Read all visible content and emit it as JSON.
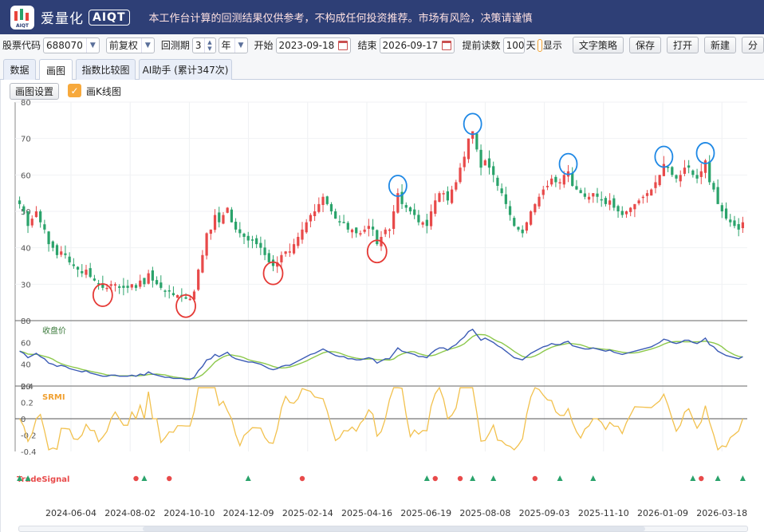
{
  "header": {
    "logo_text": "AIQT",
    "brand": "爱量化",
    "brand_tag": "AIQT",
    "notice": "本工作台计算的回测结果仅供参考，不构成任何投资推荐。市场有风险，决策请谨慎"
  },
  "toolbar": {
    "code_label": "股票代码",
    "code_value": "688070",
    "adjust_value": "前复权",
    "period_label": "回测期",
    "period_value": "3",
    "period_unit": "年",
    "start_label": "开始",
    "start_value": "2023-09-18",
    "end_label": "结束",
    "end_value": "2026-09-17",
    "preread_label": "提前读数",
    "preread_value": "100",
    "preread_unit": "天",
    "show_label": "显示",
    "btn_strategy": "文字策略",
    "btn_save": "保存",
    "btn_open": "打开",
    "btn_new": "新建",
    "btn_more": "分"
  },
  "tabs": [
    {
      "label": "数据",
      "active": false
    },
    {
      "label": "画图",
      "active": true
    },
    {
      "label": "指数比较图",
      "active": false
    },
    {
      "label": "AI助手 (累计347次)",
      "active": false
    }
  ],
  "chart_controls": {
    "settings_button": "画图设置",
    "kline_label": "画K线图",
    "kline_checked": true
  },
  "chart_data": {
    "type": "line",
    "x_ticks": [
      "2024-06-04",
      "2024-08-02",
      "2024-10-10",
      "2024-12-09",
      "2025-02-14",
      "2025-04-16",
      "2025-06-19",
      "2025-08-08",
      "2025-09-03",
      "2025-11-10",
      "2026-01-09",
      "2026-03-18"
    ],
    "panels": [
      {
        "name": "price",
        "type": "candlestick",
        "y_ticks": [
          30,
          40,
          50,
          60,
          70,
          80
        ],
        "ylim": [
          20,
          80
        ],
        "up_color": "#e84a4a",
        "down_color": "#2aa36b",
        "close": [
          52,
          50,
          46,
          48,
          50,
          47,
          45,
          41,
          40,
          38,
          39,
          38,
          36,
          35,
          34,
          33,
          34,
          32,
          31,
          30,
          29,
          29,
          30,
          30,
          29,
          29,
          29,
          30,
          29,
          31,
          30,
          33,
          31,
          30,
          29,
          28,
          28,
          27,
          27,
          27,
          26,
          26,
          28,
          34,
          38,
          44,
          45,
          49,
          47,
          49,
          51,
          47,
          45,
          44,
          43,
          42,
          42,
          41,
          40,
          38,
          36,
          35,
          36,
          38,
          39,
          39,
          41,
          43,
          45,
          47,
          49,
          50,
          52,
          54,
          52,
          50,
          48,
          47,
          47,
          45,
          45,
          44,
          44,
          45,
          46,
          45,
          41,
          43,
          45,
          45,
          50,
          55,
          52,
          51,
          50,
          49,
          47,
          47,
          46,
          50,
          53,
          55,
          55,
          53,
          56,
          58,
          62,
          65,
          70,
          72,
          67,
          62,
          64,
          62,
          60,
          57,
          55,
          52,
          49,
          46,
          45,
          44,
          47,
          50,
          52,
          54,
          56,
          57,
          59,
          58,
          58,
          60,
          61,
          57,
          56,
          55,
          54,
          54,
          55,
          54,
          53,
          52,
          53,
          51,
          50,
          49,
          50,
          51,
          52,
          53,
          54,
          55,
          56,
          58,
          60,
          63,
          62,
          60,
          59,
          60,
          62,
          62,
          60,
          59,
          61,
          64,
          58,
          56,
          52,
          50,
          48,
          47,
          46,
          45,
          47
        ],
        "annotations": [
          {
            "kind": "peak",
            "color": "#1e88e5"
          },
          {
            "kind": "peak",
            "color": "#1e88e5"
          },
          {
            "kind": "peak",
            "color": "#1e88e5"
          },
          {
            "kind": "peak",
            "color": "#1e88e5"
          },
          {
            "kind": "peak",
            "color": "#1e88e5"
          },
          {
            "kind": "trough",
            "color": "#e53935"
          },
          {
            "kind": "trough",
            "color": "#e53935"
          },
          {
            "kind": "trough",
            "color": "#e53935"
          },
          {
            "kind": "trough",
            "color": "#e53935"
          }
        ]
      },
      {
        "name": "close",
        "label": "收盘价",
        "y_ticks": [
          20,
          40,
          60,
          80
        ],
        "ylim": [
          20,
          80
        ],
        "series": [
          {
            "name": "close",
            "color": "#3b5bb5"
          },
          {
            "name": "ma",
            "color": "#8cc84b"
          }
        ]
      },
      {
        "name": "SRMI",
        "label": "SRMI",
        "y_ticks": [
          -0.4,
          -0.2,
          0,
          0.2,
          0.4
        ],
        "ylim": [
          -0.4,
          0.4
        ],
        "series": [
          {
            "name": "SRMI",
            "color": "#f2c14e"
          }
        ]
      },
      {
        "name": "TradeSignal",
        "label": "TradeSignal",
        "buy_color": "#2aa36b",
        "sell_color": "#e84a4a",
        "signals": [
          {
            "i": 0,
            "type": "buy"
          },
          {
            "i": 2,
            "type": "buy"
          },
          {
            "i": 28,
            "type": "sell"
          },
          {
            "i": 30,
            "type": "buy"
          },
          {
            "i": 36,
            "type": "sell"
          },
          {
            "i": 55,
            "type": "buy"
          },
          {
            "i": 68,
            "type": "sell"
          },
          {
            "i": 98,
            "type": "buy"
          },
          {
            "i": 100,
            "type": "sell"
          },
          {
            "i": 106,
            "type": "sell"
          },
          {
            "i": 109,
            "type": "buy"
          },
          {
            "i": 114,
            "type": "buy"
          },
          {
            "i": 124,
            "type": "sell"
          },
          {
            "i": 130,
            "type": "buy"
          },
          {
            "i": 138,
            "type": "buy"
          },
          {
            "i": 162,
            "type": "buy"
          },
          {
            "i": 164,
            "type": "sell"
          },
          {
            "i": 168,
            "type": "buy"
          },
          {
            "i": 174,
            "type": "buy"
          }
        ]
      }
    ]
  }
}
